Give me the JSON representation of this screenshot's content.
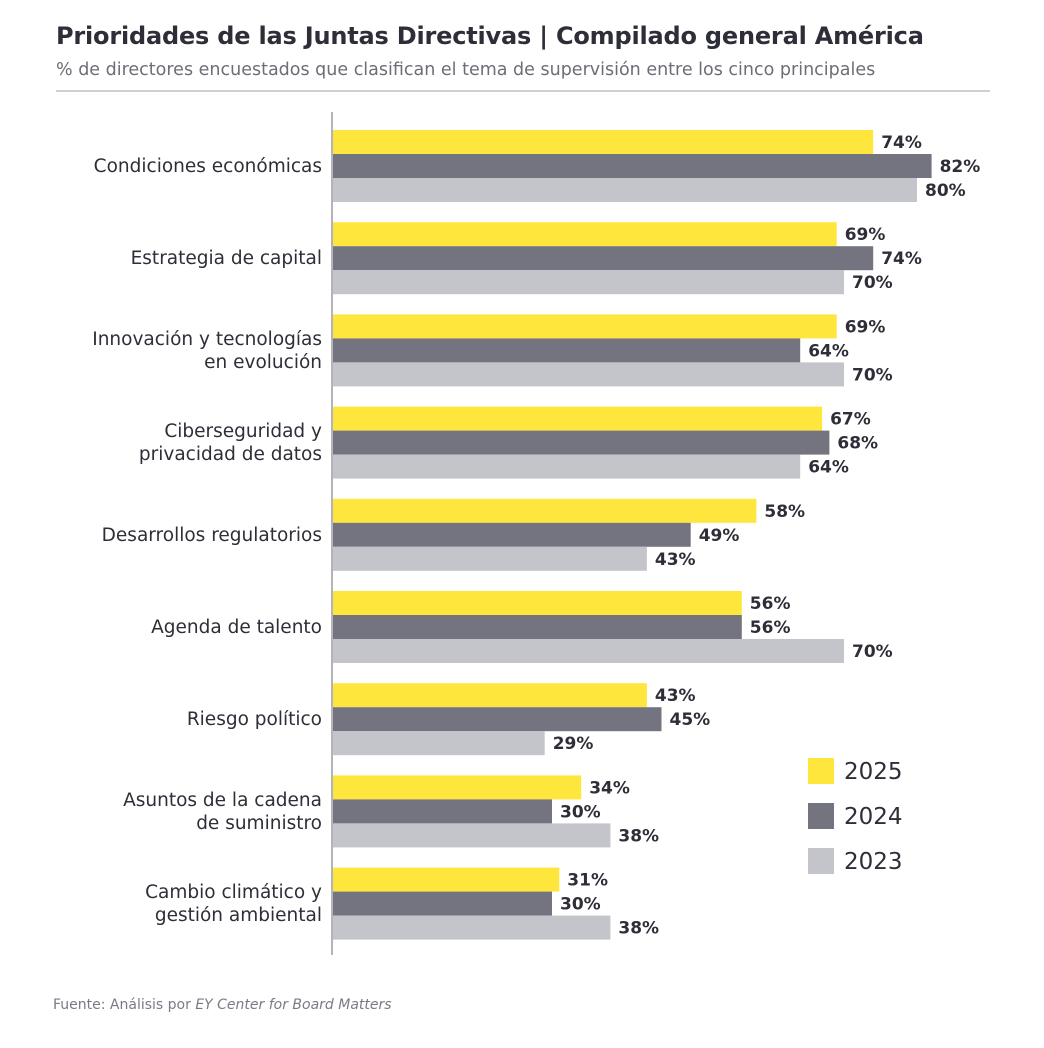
{
  "header": {
    "title": "Prioridades de las Juntas Directivas | Compilado general América",
    "subtitle": "% de directores encuestados que clasifican el tema de supervisión entre los cinco principales"
  },
  "colors": {
    "2025": "#ffe63c",
    "2024": "#747480",
    "2023": "#c4c4cb"
  },
  "chart_data": {
    "type": "bar",
    "orientation": "horizontal",
    "title": "Prioridades de las Juntas Directivas | Compilado general América",
    "subtitle": "% de directores encuestados que clasifican el tema de supervisión entre los cinco principales",
    "unit": "%",
    "categories": [
      [
        "Condiciones económicas"
      ],
      [
        "Estrategia de capital"
      ],
      [
        "Innovación y tecnologías",
        "en evolución"
      ],
      [
        "Ciberseguridad y",
        "privacidad de datos"
      ],
      [
        "Desarrollos regulatorios"
      ],
      [
        "Agenda de talento"
      ],
      [
        "Riesgo político"
      ],
      [
        "Asuntos de la cadena",
        "de suministro"
      ],
      [
        "Cambio climático y",
        "gestión ambiental"
      ]
    ],
    "series": [
      {
        "name": "2025",
        "color": "#ffe63c",
        "values": [
          74,
          69,
          69,
          67,
          58,
          56,
          43,
          34,
          31
        ]
      },
      {
        "name": "2024",
        "color": "#747480",
        "values": [
          82,
          74,
          64,
          68,
          49,
          56,
          45,
          30,
          30
        ]
      },
      {
        "name": "2023",
        "color": "#c4c4cb",
        "values": [
          80,
          70,
          70,
          64,
          43,
          70,
          29,
          38,
          38
        ]
      }
    ],
    "xlim": [
      0,
      100
    ],
    "grid": false,
    "legend_position": "bottom-right"
  },
  "source": {
    "prefix": "Fuente: Análisis por ",
    "italic": "EY Center for Board Matters"
  }
}
